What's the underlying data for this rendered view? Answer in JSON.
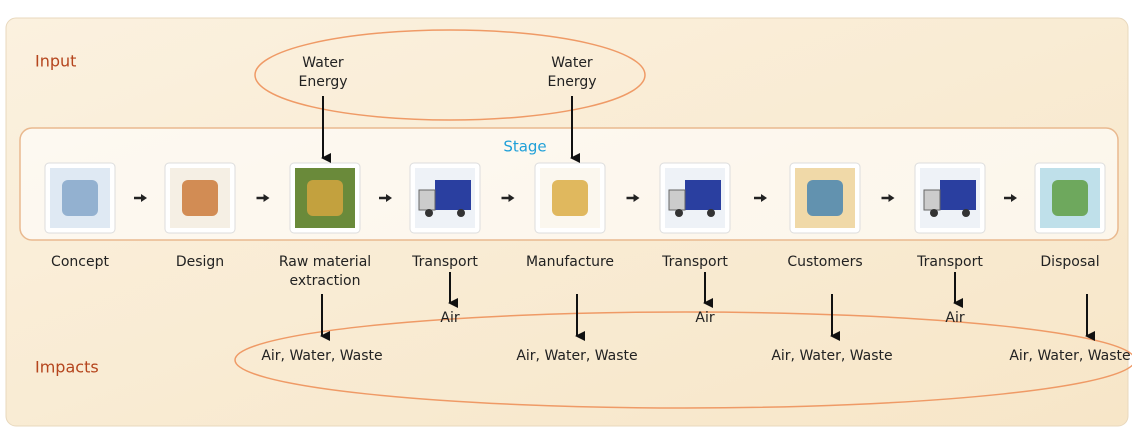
{
  "input_label": "Input",
  "impacts_label": "Impacts",
  "stage_label": "Stage",
  "inputs": [
    [
      "Water",
      "Energy"
    ],
    [
      "Water",
      "Energy"
    ]
  ],
  "stages": [
    [
      "Concept"
    ],
    [
      "Design"
    ],
    [
      "Raw material",
      "extraction"
    ],
    [
      "Transport"
    ],
    [
      "Manufacture"
    ],
    [
      "Transport"
    ],
    [
      "Customers"
    ],
    [
      "Transport"
    ],
    [
      "Disposal"
    ]
  ],
  "transport_impacts": [
    "Air",
    "Air",
    "Air"
  ],
  "stage_impacts": [
    "Air, Water, Waste",
    "Air, Water, Waste",
    "Air, Water, Waste",
    "Air, Water, Waste"
  ]
}
